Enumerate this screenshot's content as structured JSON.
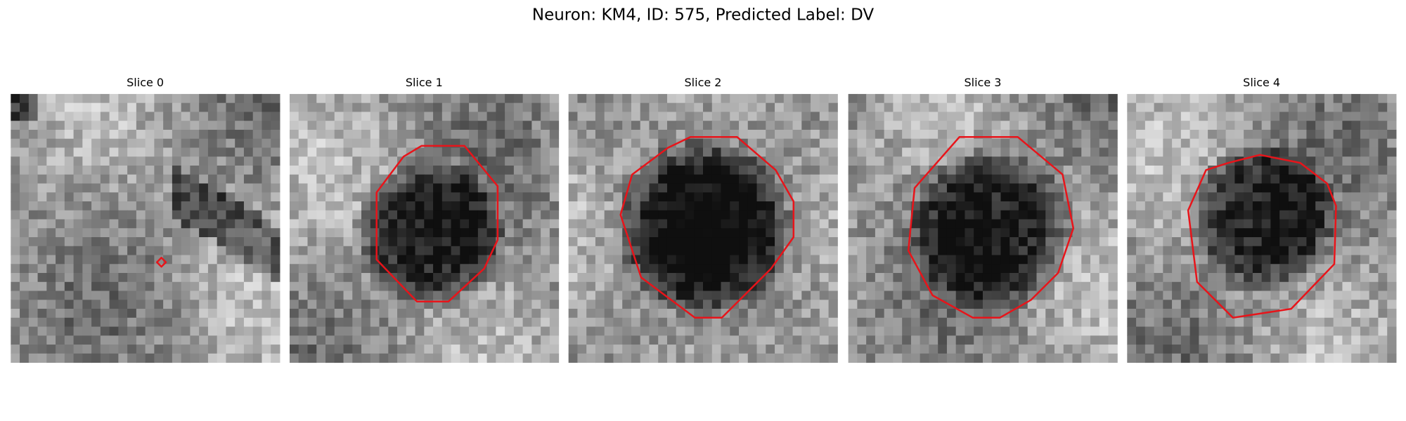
{
  "figure": {
    "title": "Neuron: KM4, ID: 575, Predicted Label: DV",
    "panels": [
      {
        "title": "Slice 0"
      },
      {
        "title": "Slice 1"
      },
      {
        "title": "Slice 2"
      },
      {
        "title": "Slice 3"
      },
      {
        "title": "Slice 4"
      }
    ]
  }
}
